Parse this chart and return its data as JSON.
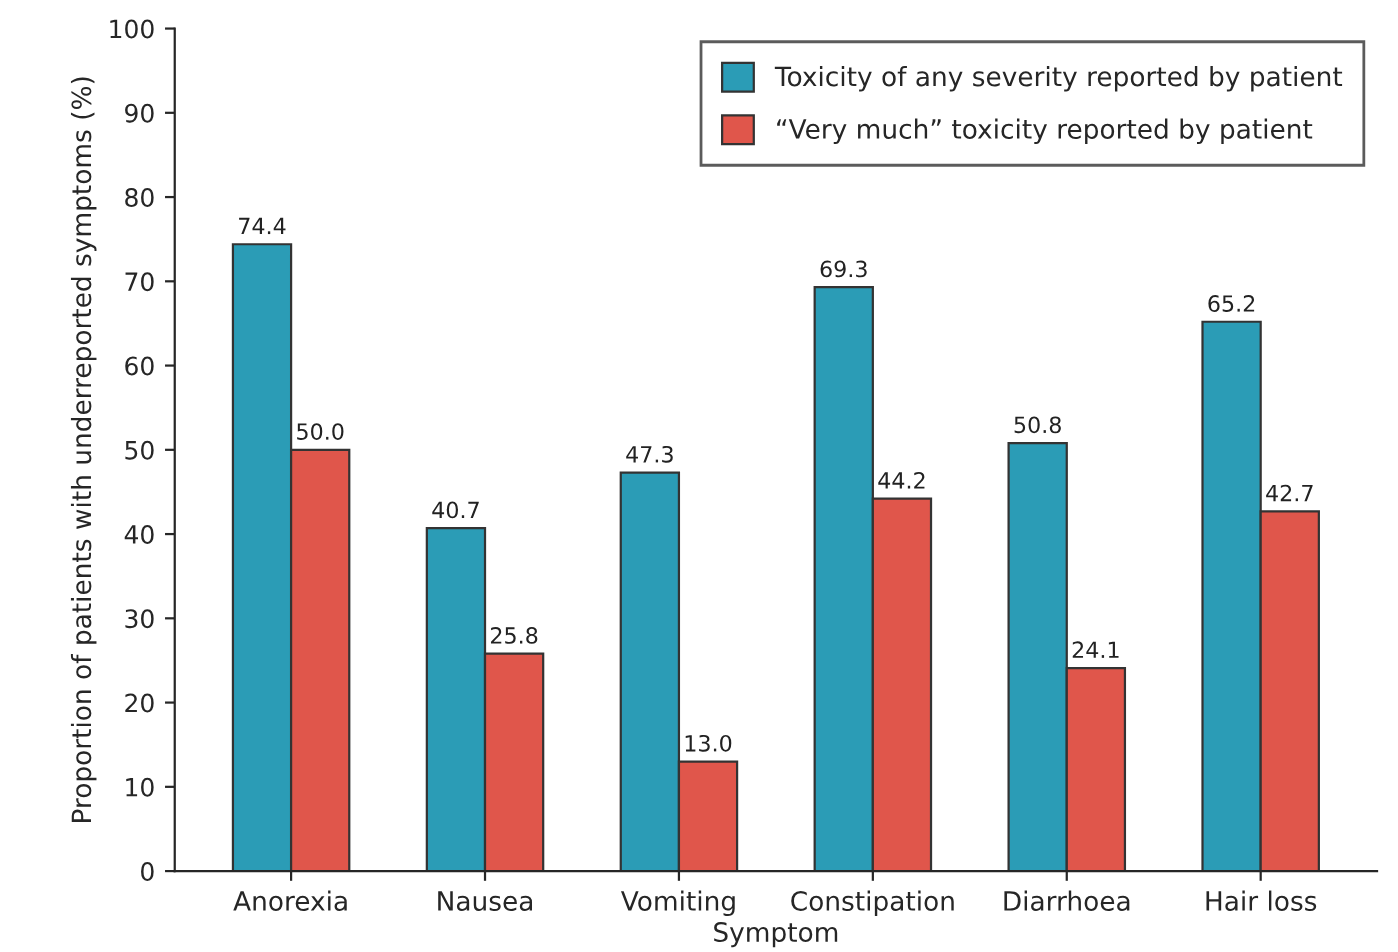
{
  "chart_data": {
    "type": "bar",
    "xlabel": "Symptom",
    "ylabel": "Proportion of patients with underreported symptoms (%)",
    "categories": [
      "Anorexia",
      "Nausea",
      "Vomiting",
      "Constipation",
      "Diarrhoea",
      "Hair loss"
    ],
    "series": [
      {
        "name": "Toxicity of any severity reported by patient",
        "color": "#2b9cb6",
        "values": [
          74.4,
          40.7,
          47.3,
          69.3,
          50.8,
          65.2
        ],
        "value_labels": [
          "74.4",
          "40.7",
          "47.3",
          "69.3",
          "50.8",
          "65.2"
        ]
      },
      {
        "name": "“Very much” toxicity reported by patient",
        "color": "#e0564b",
        "values": [
          50.0,
          25.8,
          13.0,
          44.2,
          24.1,
          42.7
        ],
        "value_labels": [
          "50.0",
          "25.8",
          "13.0",
          "44.2",
          "24.1",
          "42.7"
        ]
      }
    ],
    "ylim": [
      0,
      100
    ],
    "yticks": [
      0,
      10,
      20,
      30,
      40,
      50,
      60,
      70,
      80,
      90,
      100
    ],
    "grid": false,
    "legend": "top right"
  }
}
